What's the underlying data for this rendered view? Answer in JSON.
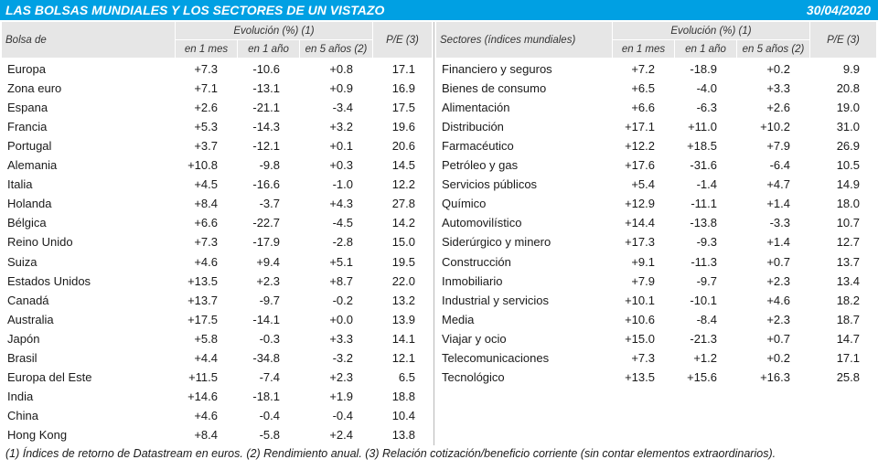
{
  "header": {
    "title": "LAS BOLSAS MUNDIALES Y LOS SECTORES DE UN VISTAZO",
    "date": "30/04/2020"
  },
  "tables": [
    {
      "columns": {
        "name": "Bolsa de",
        "group": "Evolución (%) (1)",
        "sub": [
          "en 1 mes",
          "en 1 año",
          "en 5 años (2)"
        ],
        "pe": "P/E (3)"
      },
      "rows": [
        [
          "Europa",
          "+7.3",
          "-10.6",
          "+0.8",
          "17.1"
        ],
        [
          "Zona euro",
          "+7.1",
          "-13.1",
          "+0.9",
          "16.9"
        ],
        [
          "Espana",
          "+2.6",
          "-21.1",
          "-3.4",
          "17.5"
        ],
        [
          "Francia",
          "+5.3",
          "-14.3",
          "+3.2",
          "19.6"
        ],
        [
          "Portugal",
          "+3.7",
          "-12.1",
          "+0.1",
          "20.6"
        ],
        [
          "Alemania",
          "+10.8",
          "-9.8",
          "+0.3",
          "14.5"
        ],
        [
          "Italia",
          "+4.5",
          "-16.6",
          "-1.0",
          "12.2"
        ],
        [
          "Holanda",
          "+8.4",
          "-3.7",
          "+4.3",
          "27.8"
        ],
        [
          "Bélgica",
          "+6.6",
          "-22.7",
          "-4.5",
          "14.2"
        ],
        [
          "Reino Unido",
          "+7.3",
          "-17.9",
          "-2.8",
          "15.0"
        ],
        [
          "Suiza",
          "+4.6",
          "+9.4",
          "+5.1",
          "19.5"
        ],
        [
          "Estados Unidos",
          "+13.5",
          "+2.3",
          "+8.7",
          "22.0"
        ],
        [
          "Canadá",
          "+13.7",
          "-9.7",
          "-0.2",
          "13.2"
        ],
        [
          "Australia",
          "+17.5",
          "-14.1",
          "+0.0",
          "13.9"
        ],
        [
          "Japón",
          "+5.8",
          "-0.3",
          "+3.3",
          "14.1"
        ],
        [
          "Brasil",
          "+4.4",
          "-34.8",
          "-3.2",
          "12.1"
        ],
        [
          "Europa del Este",
          "+11.5",
          "-7.4",
          "+2.3",
          "6.5"
        ],
        [
          "India",
          "+14.6",
          "-18.1",
          "+1.9",
          "18.8"
        ],
        [
          "China",
          "+4.6",
          "-0.4",
          "-0.4",
          "10.4"
        ],
        [
          "Hong Kong",
          "+8.4",
          "-5.8",
          "+2.4",
          "13.8"
        ]
      ]
    },
    {
      "columns": {
        "name": "Sectores (índices mundiales)",
        "group": "Evolución (%) (1)",
        "sub": [
          "en 1 mes",
          "en 1 año",
          "en 5 años (2)"
        ],
        "pe": "P/E (3)"
      },
      "rows": [
        [
          "Financiero y seguros",
          "+7.2",
          "-18.9",
          "+0.2",
          "9.9"
        ],
        [
          "Bienes de consumo",
          "+6.5",
          "-4.0",
          "+3.3",
          "20.8"
        ],
        [
          "Alimentación",
          "+6.6",
          "-6.3",
          "+2.6",
          "19.0"
        ],
        [
          "Distribución",
          "+17.1",
          "+11.0",
          "+10.2",
          "31.0"
        ],
        [
          "Farmacéutico",
          "+12.2",
          "+18.5",
          "+7.9",
          "26.9"
        ],
        [
          "Petróleo y gas",
          "+17.6",
          "-31.6",
          "-6.4",
          "10.5"
        ],
        [
          "Servicios públicos",
          "+5.4",
          "-1.4",
          "+4.7",
          "14.9"
        ],
        [
          "Químico",
          "+12.9",
          "-11.1",
          "+1.4",
          "18.0"
        ],
        [
          "Automovilístico",
          "+14.4",
          "-13.8",
          "-3.3",
          "10.7"
        ],
        [
          "Siderúrgico y minero",
          "+17.3",
          "-9.3",
          "+1.4",
          "12.7"
        ],
        [
          "Construcción",
          "+9.1",
          "-11.3",
          "+0.7",
          "13.7"
        ],
        [
          "Inmobiliario",
          "+7.9",
          "-9.7",
          "+2.3",
          "13.4"
        ],
        [
          "Industrial y servicios",
          "+10.1",
          "-10.1",
          "+4.6",
          "18.2"
        ],
        [
          "Media",
          "+10.6",
          "-8.4",
          "+2.3",
          "18.7"
        ],
        [
          "Viajar y ocio",
          "+15.0",
          "-21.3",
          "+0.7",
          "14.7"
        ],
        [
          "Telecomunicaciones",
          "+7.3",
          "+1.2",
          "+0.2",
          "17.1"
        ],
        [
          "Tecnológico",
          "+13.5",
          "+15.6",
          "+16.3",
          "25.8"
        ]
      ]
    }
  ],
  "footnote": "(1) Índices de retorno de Datastream en euros. (2) Rendimiento anual. (3) Relación cotización/beneficio corriente (sin contar elementos extraordinarios)."
}
